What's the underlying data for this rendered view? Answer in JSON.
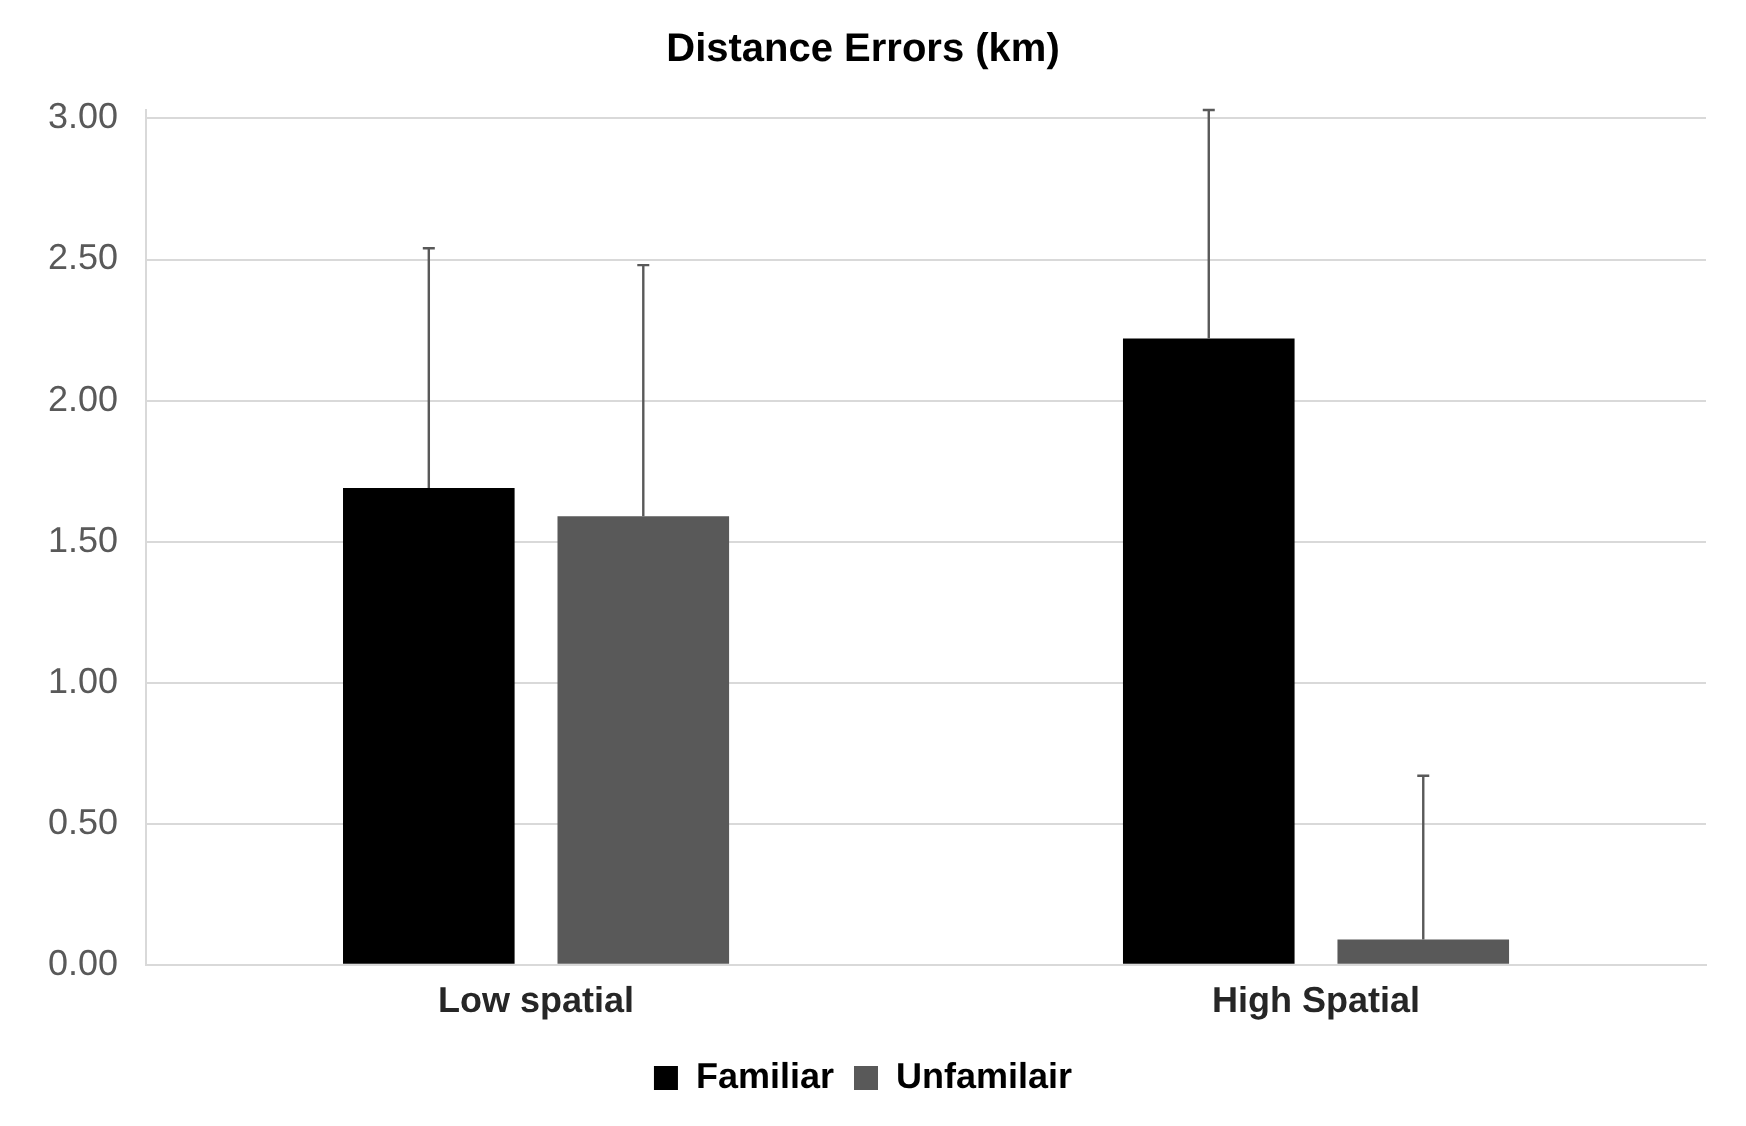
{
  "chart_data": {
    "type": "bar",
    "title": "Distance Errors (km)",
    "categories": [
      "Low spatial",
      "High Spatial"
    ],
    "series": [
      {
        "name": "Familiar",
        "color": "#000000",
        "values": [
          1.69,
          2.22
        ],
        "errors": [
          [
            1.69,
            2.54
          ],
          [
            2.22,
            3.03
          ]
        ]
      },
      {
        "name": "Unfamilair",
        "color": "#595959",
        "values": [
          1.59,
          0.09
        ],
        "errors": [
          [
            1.59,
            2.48
          ],
          [
            0.09,
            0.67
          ]
        ]
      }
    ],
    "ylim": [
      0,
      3.03
    ],
    "yticks": [
      {
        "value": 0,
        "label": "0.00"
      },
      {
        "value": 0.5,
        "label": "0.50"
      },
      {
        "value": 1,
        "label": "1.00"
      },
      {
        "value": 1.5,
        "label": "1.50"
      },
      {
        "value": 2,
        "label": "2.00"
      },
      {
        "value": 2.5,
        "label": "2.50"
      },
      {
        "value": 3,
        "label": "3.00"
      }
    ],
    "grid": "y",
    "legend": "bottom"
  }
}
